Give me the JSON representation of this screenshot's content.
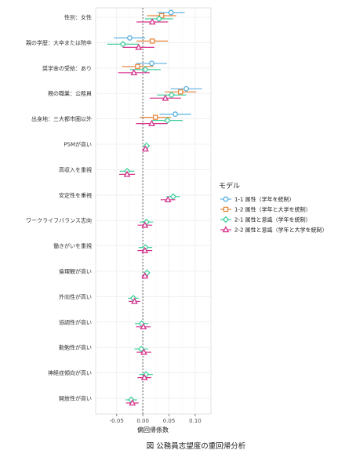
{
  "chart_data": {
    "type": "forest",
    "xlabel": "偏回帰係数",
    "xlim": [
      -0.09,
      0.13
    ],
    "xticks": [
      -0.05,
      0.0,
      0.05,
      0.1
    ],
    "xtick_labels": [
      "-0.05",
      "0.00",
      "0.05",
      "0.10"
    ],
    "reference_line": 0,
    "grid": true,
    "legend_title": "モデル",
    "legend_position": "right",
    "caption": "図  公務員志望度の重回帰分析",
    "categories": [
      "性別：女性",
      "親の学歴：大卒または院卒",
      "奨学金の受給：あり",
      "親の職業：公務員",
      "出身地：三大都市圏以外",
      "PSMが高い",
      "高収入を重視",
      "安定性を重視",
      "ワークライフバランス志向",
      "働きがいを重視",
      "倫理観が高い",
      "外向性が高い",
      "協調性が高い",
      "勤勉性が高い",
      "神経症傾向が高い",
      "開放性が高い"
    ],
    "series": [
      {
        "name": "1-1 属性（学年を統制）",
        "color": "#5bb0e0",
        "marker": "circle",
        "estimates": [
          0.054,
          -0.025,
          0.017,
          0.083,
          0.062,
          null,
          null,
          null,
          null,
          null,
          null,
          null,
          null,
          null,
          null,
          null
        ],
        "ci_low": [
          0.028,
          -0.055,
          -0.012,
          0.053,
          0.032,
          null,
          null,
          null,
          null,
          null,
          null,
          null,
          null,
          null,
          null,
          null
        ],
        "ci_high": [
          0.08,
          0.005,
          0.046,
          0.113,
          0.092,
          null,
          null,
          null,
          null,
          null,
          null,
          null,
          null,
          null,
          null,
          null
        ]
      },
      {
        "name": "1-2 属性（学年と大学を統制）",
        "color": "#e8873a",
        "marker": "square",
        "estimates": [
          0.036,
          0.018,
          -0.01,
          0.072,
          0.024,
          null,
          null,
          null,
          null,
          null,
          null,
          null,
          null,
          null,
          null,
          null
        ],
        "ci_low": [
          0.008,
          -0.012,
          -0.04,
          0.042,
          -0.006,
          null,
          null,
          null,
          null,
          null,
          null,
          null,
          null,
          null,
          null,
          null
        ],
        "ci_high": [
          0.064,
          0.048,
          0.02,
          0.102,
          0.054,
          null,
          null,
          null,
          null,
          null,
          null,
          null,
          null,
          null,
          null,
          null
        ]
      },
      {
        "name": "2-1 属性と意識（学年を統制）",
        "color": "#3fcf9c",
        "marker": "diamond",
        "estimates": [
          0.031,
          -0.038,
          0.005,
          0.055,
          0.047,
          0.007,
          -0.03,
          0.058,
          0.007,
          0.005,
          0.008,
          -0.018,
          -0.002,
          -0.003,
          0.006,
          -0.022
        ],
        "ci_low": [
          0.004,
          -0.068,
          -0.024,
          0.027,
          0.018,
          0.002,
          -0.044,
          0.045,
          -0.006,
          -0.008,
          0.002,
          -0.028,
          -0.015,
          -0.016,
          -0.007,
          -0.033
        ],
        "ci_high": [
          0.058,
          -0.008,
          0.034,
          0.083,
          0.076,
          0.012,
          -0.016,
          0.071,
          0.02,
          0.018,
          0.014,
          -0.008,
          0.011,
          0.01,
          0.019,
          -0.011
        ]
      },
      {
        "name": "2-2 属性と意識（学年と大学を統制）",
        "color": "#d6348e",
        "marker": "triangle",
        "estimates": [
          0.018,
          -0.008,
          -0.017,
          0.043,
          0.017,
          0.005,
          -0.03,
          0.048,
          0.004,
          0.004,
          0.004,
          -0.016,
          0.001,
          0.002,
          0.003,
          -0.02
        ],
        "ci_low": [
          -0.012,
          -0.038,
          -0.047,
          0.013,
          -0.013,
          0.0,
          -0.045,
          0.034,
          -0.01,
          -0.01,
          -0.002,
          -0.027,
          -0.013,
          -0.012,
          -0.01,
          -0.032
        ],
        "ci_high": [
          0.048,
          0.022,
          0.013,
          0.073,
          0.047,
          0.01,
          -0.015,
          0.062,
          0.018,
          0.018,
          0.01,
          -0.005,
          0.015,
          0.016,
          0.016,
          -0.008
        ]
      }
    ]
  }
}
